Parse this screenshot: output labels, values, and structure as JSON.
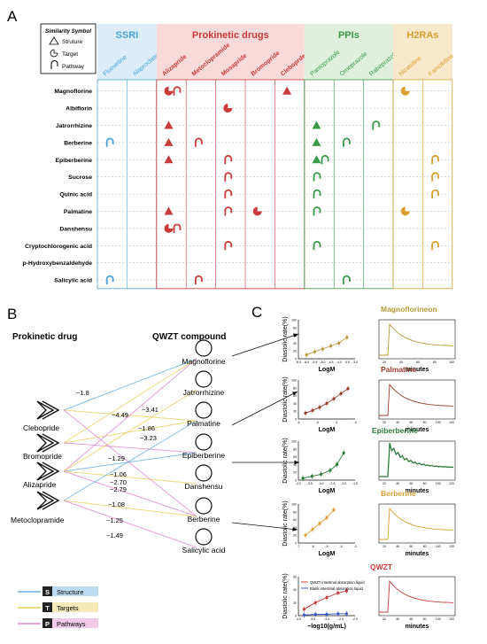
{
  "panels": {
    "a": "A",
    "b": "B",
    "c": "C"
  },
  "colors": {
    "ssri": "#4aa3d8",
    "prokinetic": "#c93a3a",
    "ppis": "#3a9a4a",
    "h2ras": "#d9a030",
    "ssri_bg": "#dcecf8",
    "prokinetic_bg": "#f8dada",
    "ppis_bg": "#dff0dc",
    "h2ras_bg": "#f8e8cc",
    "structure": "#6aaee0",
    "targets": "#e8d060",
    "pathways": "#e08ad0"
  },
  "legend_a": {
    "title": "Similarity Symbol",
    "items": [
      {
        "icon": "triangle-icon",
        "label": "Struture"
      },
      {
        "icon": "target-icon",
        "label": "Target"
      },
      {
        "icon": "pathway-icon",
        "label": "Pathway"
      }
    ]
  },
  "groups": [
    {
      "key": "ssri",
      "label": "SSRI",
      "drugs": [
        "Fluoxetine",
        "Alaproclate"
      ]
    },
    {
      "key": "prokinetic",
      "label": "Prokinetic drugs",
      "drugs": [
        "Alizapride",
        "Metoclopramide",
        "Mosapride",
        "Bromopride",
        "Cleboprde"
      ]
    },
    {
      "key": "ppis",
      "label": "PPIs",
      "drugs": [
        "Pantoprazole",
        "Omeprazole",
        "Rabeprazole"
      ]
    },
    {
      "key": "h2ras",
      "label": "H2RAs",
      "drugs": [
        "Nizatidine",
        "Famotidine"
      ]
    }
  ],
  "compounds": [
    "Magnoflorine",
    "Albiflorin",
    "Jatrorrhizine",
    "Berberine",
    "Epiberberine",
    "Sucrose",
    "Quinic acid",
    "Palmatine",
    "Danshensu",
    "Cryptochlorogenic acid",
    "p-Hydroxybenzaldehyde",
    "Salicylic acid"
  ],
  "marks": [
    {
      "row": 0,
      "col": 2,
      "type": "target"
    },
    {
      "row": 0,
      "col": 2,
      "type": "pathway"
    },
    {
      "row": 0,
      "col": 6,
      "type": "structure"
    },
    {
      "row": 0,
      "col": 10,
      "type": "target"
    },
    {
      "row": 1,
      "col": 4,
      "type": "target"
    },
    {
      "row": 2,
      "col": 2,
      "type": "structure"
    },
    {
      "row": 2,
      "col": 7,
      "type": "structure"
    },
    {
      "row": 2,
      "col": 9,
      "type": "pathway"
    },
    {
      "row": 3,
      "col": 0,
      "type": "pathway"
    },
    {
      "row": 3,
      "col": 2,
      "type": "structure"
    },
    {
      "row": 3,
      "col": 3,
      "type": "pathway"
    },
    {
      "row": 3,
      "col": 7,
      "type": "structure"
    },
    {
      "row": 3,
      "col": 8,
      "type": "pathway"
    },
    {
      "row": 4,
      "col": 2,
      "type": "structure"
    },
    {
      "row": 4,
      "col": 4,
      "type": "pathway"
    },
    {
      "row": 4,
      "col": 7,
      "type": "structure"
    },
    {
      "row": 4,
      "col": 7,
      "type": "pathway"
    },
    {
      "row": 4,
      "col": 11,
      "type": "pathway"
    },
    {
      "row": 5,
      "col": 4,
      "type": "pathway"
    },
    {
      "row": 5,
      "col": 7,
      "type": "pathway"
    },
    {
      "row": 5,
      "col": 11,
      "type": "pathway"
    },
    {
      "row": 6,
      "col": 4,
      "type": "pathway"
    },
    {
      "row": 6,
      "col": 7,
      "type": "pathway"
    },
    {
      "row": 6,
      "col": 11,
      "type": "pathway"
    },
    {
      "row": 7,
      "col": 2,
      "type": "structure"
    },
    {
      "row": 7,
      "col": 4,
      "type": "pathway"
    },
    {
      "row": 7,
      "col": 5,
      "type": "target"
    },
    {
      "row": 7,
      "col": 7,
      "type": "pathway"
    },
    {
      "row": 7,
      "col": 10,
      "type": "target"
    },
    {
      "row": 8,
      "col": 2,
      "type": "target"
    },
    {
      "row": 8,
      "col": 2,
      "type": "pathway"
    },
    {
      "row": 9,
      "col": 4,
      "type": "pathway"
    },
    {
      "row": 9,
      "col": 7,
      "type": "pathway"
    },
    {
      "row": 9,
      "col": 11,
      "type": "pathway"
    },
    {
      "row": 11,
      "col": 0,
      "type": "pathway"
    },
    {
      "row": 11,
      "col": 3,
      "type": "pathway"
    },
    {
      "row": 11,
      "col": 8,
      "type": "pathway"
    }
  ],
  "network": {
    "left_title": "Prokinetic drug",
    "right_title": "QWZT compound",
    "drugs": [
      "Clebopride",
      "Bromopride",
      "Alizapride",
      "Metoclopramide"
    ],
    "compounds": [
      "Magnoflorine",
      "Jatrorrhizine",
      "Palmatine",
      "Epiberberine",
      "Danshensu",
      "Berberine",
      "Salicylic acid"
    ],
    "edge_labels": [
      "−1.8",
      "−4.49",
      "−3.41",
      "−1.86",
      "−3.23",
      "−1.29",
      "−1.06",
      "−2.70",
      "−2.79",
      "−1.08",
      "−1.25",
      "−1.49"
    ],
    "legend": [
      {
        "letter": "S",
        "label": "Structure"
      },
      {
        "letter": "T",
        "label": "Targets"
      },
      {
        "letter": "P",
        "label": "Pathways"
      }
    ]
  },
  "plots_c": [
    {
      "title": "Magnoflorineon",
      "xlabel": "LogM",
      "ylabel": "Diastolic rate(%)",
      "color": "#b89a3a",
      "x_ticks": [
        "-6.5",
        "-6.0",
        "-5.5",
        "-5.0",
        "-4.5",
        "-4.0",
        "-3.5",
        "-3.0"
      ],
      "y_ticks": [
        "0",
        "20",
        "40",
        "60",
        "80",
        "100"
      ],
      "ylim": [
        0,
        100
      ],
      "xlim": [
        -6.5,
        -3.0
      ],
      "points": [
        [
          -6.0,
          10
        ],
        [
          -5.5,
          18
        ],
        [
          -5.0,
          25
        ],
        [
          -4.5,
          33
        ],
        [
          -4.0,
          40
        ],
        [
          -3.5,
          55
        ]
      ],
      "time_xlabel": "minutes",
      "time_x_ticks": [
        "20",
        "40",
        "60",
        "80",
        "100"
      ]
    },
    {
      "title": "Palmatine",
      "xlabel": "LogM",
      "ylabel": "Diastolic rate(%)",
      "color": "#9a3a2a",
      "x_ticks": [
        "-6",
        "-5",
        "-4",
        "-3"
      ],
      "y_ticks": [
        "0",
        "20",
        "40",
        "60",
        "80",
        "100"
      ],
      "ylim": [
        0,
        100
      ],
      "xlim": [
        -6.5,
        -2.5
      ],
      "points": [
        [
          -6.0,
          15
        ],
        [
          -5.5,
          22
        ],
        [
          -5.0,
          30
        ],
        [
          -4.5,
          40
        ],
        [
          -4.0,
          52
        ],
        [
          -3.5,
          65
        ],
        [
          -3.0,
          78
        ]
      ],
      "time_xlabel": "minutes",
      "time_x_ticks": [
        "20",
        "40",
        "60",
        "80",
        "100",
        "120"
      ]
    },
    {
      "title": "Epiberberine",
      "xlabel": "LogM",
      "ylabel": "Diastolic rate(%)",
      "color": "#2a7a3a",
      "x_ticks": [
        "-4.0",
        "-3.5",
        "-3.0",
        "-2.5",
        "-2.0",
        "-1.5"
      ],
      "y_ticks": [
        "0",
        "20",
        "40",
        "60",
        "80",
        "100"
      ],
      "ylim": [
        0,
        100
      ],
      "xlim": [
        -4.0,
        -1.5
      ],
      "points": [
        [
          -3.8,
          5
        ],
        [
          -3.4,
          10
        ],
        [
          -3.0,
          15
        ],
        [
          -2.6,
          25
        ],
        [
          -2.3,
          40
        ],
        [
          -2.0,
          70
        ]
      ],
      "time_xlabel": "minutes",
      "time_x_ticks": [
        "20",
        "40",
        "60",
        "80",
        "100",
        "120"
      ]
    },
    {
      "title": "Berberine",
      "xlabel": "LogM",
      "ylabel": "Diastolic rate(%)",
      "color": "#d9a030",
      "x_ticks": [
        "-7",
        "-6",
        "-5",
        "-4",
        "-3"
      ],
      "y_ticks": [
        "0",
        "20",
        "40",
        "60",
        "80",
        "100"
      ],
      "ylim": [
        0,
        100
      ],
      "xlim": [
        -7,
        -3
      ],
      "points": [
        [
          -6.5,
          20
        ],
        [
          -6.0,
          35
        ],
        [
          -5.5,
          50
        ],
        [
          -5.0,
          65
        ],
        [
          -4.5,
          85
        ]
      ],
      "time_xlabel": "minutes",
      "time_x_ticks": [
        "20",
        "40",
        "60",
        "80",
        "100",
        "120"
      ]
    },
    {
      "title": "QWZT",
      "xlabel": "−log10(g/mL)",
      "ylabel": "Diastolic rate(%)",
      "color": "#c93a3a",
      "x_ticks": [
        "-4.0",
        "-3.5",
        "-3.0",
        "-2.5",
        "-2.0"
      ],
      "y_ticks": [
        "0",
        "20",
        "40",
        "60"
      ],
      "ylim": [
        0,
        60
      ],
      "xlim": [
        -4.0,
        -2.0
      ],
      "series": [
        {
          "name": "QWZT intestinal absorption liquid",
          "color": "#c93a3a",
          "points": [
            [
              -3.8,
              10
            ],
            [
              -3.4,
              20
            ],
            [
              -3.0,
              28
            ],
            [
              -2.6,
              35
            ],
            [
              -2.3,
              38
            ]
          ]
        },
        {
          "name": "Blank intestinal absorption liquid",
          "color": "#3a5ac9",
          "points": [
            [
              -3.8,
              1
            ],
            [
              -3.4,
              2
            ],
            [
              -3.0,
              2
            ],
            [
              -2.6,
              3
            ],
            [
              -2.3,
              3
            ]
          ]
        }
      ],
      "time_xlabel": "minutes",
      "time_x_ticks": [
        "20",
        "40",
        "60",
        "80",
        "100",
        "120"
      ]
    }
  ]
}
